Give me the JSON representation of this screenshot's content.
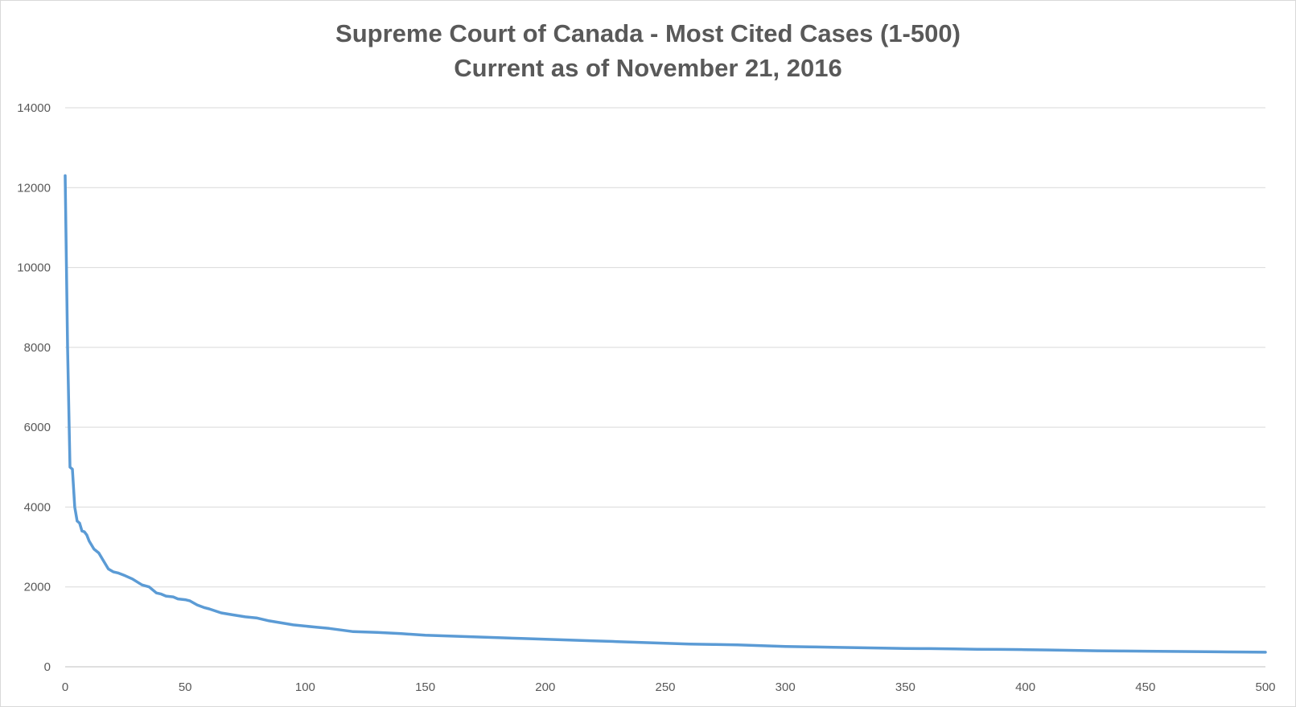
{
  "chart_data": {
    "type": "line",
    "title": "Supreme Court of Canada - Most Cited Cases (1-500)",
    "subtitle": "Current as of November 21, 2016",
    "xlabel": "",
    "ylabel": "",
    "xlim": [
      0,
      500
    ],
    "ylim": [
      0,
      14000
    ],
    "grid": true,
    "legend": "none",
    "line_color": "#5b9bd5",
    "x_ticks": [
      "0",
      "50",
      "100",
      "150",
      "200",
      "250",
      "300",
      "350",
      "400",
      "450",
      "500"
    ],
    "y_ticks": [
      "0",
      "2000",
      "4000",
      "6000",
      "8000",
      "10000",
      "12000",
      "14000"
    ],
    "series": [
      {
        "x": [
          0,
          1,
          2,
          3,
          4,
          5,
          6,
          7,
          8,
          9,
          10,
          12,
          14,
          16,
          18,
          20,
          22,
          25,
          28,
          32,
          35,
          38,
          40,
          42,
          45,
          47,
          50,
          52,
          55,
          58,
          60,
          65,
          70,
          75,
          80,
          85,
          90,
          95,
          100,
          105,
          110,
          115,
          120,
          130,
          140,
          150,
          160,
          170,
          180,
          190,
          200,
          210,
          220,
          230,
          240,
          250,
          260,
          270,
          280,
          290,
          300,
          310,
          320,
          330,
          340,
          350,
          360,
          370,
          380,
          390,
          400,
          410,
          420,
          430,
          440,
          450,
          460,
          470,
          480,
          490,
          500
        ],
        "y": [
          12300,
          8000,
          5000,
          4950,
          4000,
          3650,
          3600,
          3400,
          3380,
          3300,
          3150,
          2950,
          2850,
          2650,
          2450,
          2380,
          2350,
          2280,
          2200,
          2050,
          2000,
          1850,
          1820,
          1770,
          1750,
          1700,
          1680,
          1650,
          1550,
          1480,
          1450,
          1350,
          1300,
          1250,
          1220,
          1150,
          1100,
          1050,
          1020,
          990,
          960,
          920,
          880,
          860,
          830,
          790,
          770,
          750,
          730,
          710,
          690,
          670,
          650,
          630,
          610,
          590,
          570,
          560,
          550,
          530,
          510,
          500,
          490,
          480,
          470,
          460,
          455,
          450,
          440,
          435,
          430,
          420,
          410,
          400,
          395,
          390,
          385,
          380,
          375,
          370,
          365
        ]
      }
    ]
  }
}
